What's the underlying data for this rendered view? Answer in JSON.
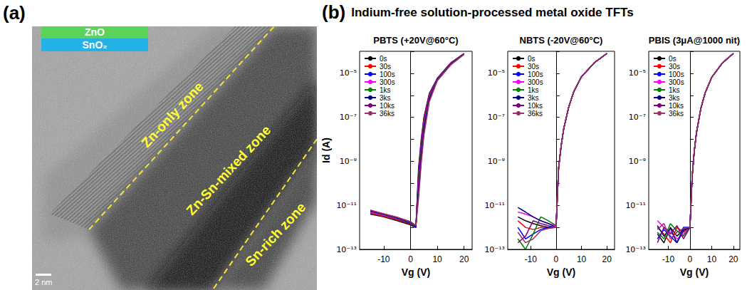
{
  "panel_a": {
    "label": "(a)",
    "inset": [
      "ZnO",
      "SnO₂"
    ],
    "zones": [
      "Zn-only zone",
      "Zn-Sn-mixed zone",
      "Sn-rich zone"
    ],
    "scale_bar": "2 nm"
  },
  "panel_b": {
    "label": "(b)",
    "title": "Indium-free solution-processed metal oxide TFTs"
  },
  "chart_data": [
    {
      "type": "line",
      "title": "PBTS (+20V@60°C)",
      "xlabel": "Vg (V)",
      "ylabel": "Id (A)",
      "log": "y",
      "grid": false,
      "legend": "upper left",
      "xlim": [
        -19,
        23
      ],
      "xticks": [
        -10,
        0,
        10,
        20
      ],
      "ylim": [
        1e-13,
        0.0001
      ],
      "yticks": [
        {
          "value": 1e-13,
          "label": "10⁻¹³"
        },
        {
          "value": 1e-11,
          "label": "10⁻¹¹"
        },
        {
          "value": 1e-09,
          "label": "10⁻⁹"
        },
        {
          "value": 1e-07,
          "label": "10⁻⁷"
        },
        {
          "value": 1e-05,
          "label": "10⁻⁵"
        }
      ],
      "x": [
        -15,
        -10,
        -5,
        0,
        1,
        2,
        3,
        4,
        5,
        7,
        10,
        15,
        20
      ],
      "series": [
        {
          "name": "0s",
          "color": "#000000",
          "values": [
            4e-12,
            3e-12,
            2e-12,
            1.3e-12,
            1.1e-12,
            1e-12,
            5e-10,
            1e-08,
            1e-07,
            1.2e-06,
            6e-06,
            3e-05,
            8e-05
          ]
        },
        {
          "name": "30s",
          "color": "#ff0000",
          "values": [
            4.5e-12,
            3.2e-12,
            2.2e-12,
            1.4e-12,
            1.2e-12,
            1e-12,
            3e-10,
            8e-09,
            8e-08,
            1.1e-06,
            5.8e-06,
            2.9e-05,
            7.9e-05
          ]
        },
        {
          "name": "100s",
          "color": "#0000ff",
          "values": [
            5e-12,
            3.5e-12,
            2.4e-12,
            1.5e-12,
            1.2e-12,
            1e-12,
            2e-10,
            6e-09,
            6e-08,
            1e-06,
            5.6e-06,
            2.8e-05,
            7.8e-05
          ]
        },
        {
          "name": "300s",
          "color": "#ff00ff",
          "values": [
            5e-12,
            3.6e-12,
            2.5e-12,
            1.6e-12,
            1.3e-12,
            1.1e-12,
            1.2e-10,
            4e-09,
            5e-08,
            9e-07,
            5.4e-06,
            2.8e-05,
            7.7e-05
          ]
        },
        {
          "name": "1ks",
          "color": "#008000",
          "values": [
            5.5e-12,
            3.8e-12,
            2.6e-12,
            1.6e-12,
            1.3e-12,
            1.1e-12,
            8e-11,
            3e-09,
            4e-08,
            8e-07,
            5.2e-06,
            2.7e-05,
            7.6e-05
          ]
        },
        {
          "name": "3ks",
          "color": "#000080",
          "values": [
            5.5e-12,
            4e-12,
            2.7e-12,
            1.7e-12,
            1.4e-12,
            1.1e-12,
            5e-11,
            2e-09,
            3e-08,
            7e-07,
            5e-06,
            2.6e-05,
            7.5e-05
          ]
        },
        {
          "name": "10ks",
          "color": "#800080",
          "values": [
            6e-12,
            4e-12,
            2.8e-12,
            1.8e-12,
            1.4e-12,
            1.2e-12,
            3e-11,
            1.2e-09,
            2e-08,
            6e-07,
            4.8e-06,
            2.5e-05,
            7.4e-05
          ]
        },
        {
          "name": "36ks",
          "color": "#993366",
          "values": [
            6e-12,
            4.2e-12,
            2.9e-12,
            1.8e-12,
            1.5e-12,
            1.2e-12,
            2e-11,
            8e-10,
            1.5e-08,
            5e-07,
            4.6e-06,
            2.4e-05,
            7.3e-05
          ]
        }
      ]
    },
    {
      "type": "line",
      "title": "NBTS (-20V@60°C)",
      "xlabel": "Vg (V)",
      "log": "y",
      "grid": false,
      "legend": "upper left",
      "xlim": [
        -19,
        23
      ],
      "xticks": [
        -10,
        0,
        10,
        20
      ],
      "ylim": [
        1e-13,
        0.0001
      ],
      "yticks": [
        {
          "value": 1e-13,
          "label": "10⁻¹³"
        },
        {
          "value": 1e-11,
          "label": "10⁻¹¹"
        },
        {
          "value": 1e-09,
          "label": "10⁻⁹"
        },
        {
          "value": 1e-07,
          "label": "10⁻⁷"
        },
        {
          "value": 1e-05,
          "label": "10⁻⁵"
        }
      ],
      "x": [
        -15,
        -12,
        -9,
        -6,
        -3,
        0,
        1,
        2,
        3,
        5,
        7,
        10,
        15,
        20
      ],
      "series": [
        {
          "name": "0s",
          "color": "#000000",
          "values": [
            3e-12,
            2e-12,
            1.5e-12,
            1.2e-12,
            1e-12,
            1e-12,
            5e-10,
            5e-09,
            3e-08,
            3e-07,
            1.5e-06,
            7e-06,
            3e-05,
            8e-05
          ]
        },
        {
          "name": "30s",
          "color": "#ff0000",
          "values": [
            2e-12,
            1e-12,
            8e-13,
            1e-12,
            9e-13,
            1e-12,
            5e-10,
            5e-09,
            3e-08,
            3e-07,
            1.5e-06,
            7e-06,
            3e-05,
            8e-05
          ]
        },
        {
          "name": "100s",
          "color": "#0000ff",
          "values": [
            1e-12,
            3e-13,
            5e-13,
            8e-13,
            1e-12,
            1e-12,
            5e-10,
            5e-09,
            3e-08,
            3e-07,
            1.5e-06,
            7e-06,
            3e-05,
            8e-05
          ]
        },
        {
          "name": "300s",
          "color": "#ff00ff",
          "values": [
            5e-12,
            4e-12,
            3e-12,
            2e-12,
            1.5e-12,
            1.2e-12,
            5e-10,
            5e-09,
            3e-08,
            3e-07,
            1.5e-06,
            7e-06,
            3e-05,
            8e-05
          ]
        },
        {
          "name": "1ks",
          "color": "#008000",
          "values": [
            3e-13,
            1e-13,
            5e-13,
            3e-12,
            2e-12,
            1.2e-12,
            5e-10,
            5e-09,
            3e-08,
            3e-07,
            1.5e-06,
            7e-06,
            3e-05,
            8e-05
          ]
        },
        {
          "name": "3ks",
          "color": "#000080",
          "values": [
            8e-12,
            5e-12,
            3e-12,
            2e-12,
            1.5e-12,
            1e-12,
            5e-10,
            5e-09,
            3e-08,
            3e-07,
            1.5e-06,
            7e-06,
            3e-05,
            8e-05
          ]
        },
        {
          "name": "10ks",
          "color": "#800080",
          "values": [
            2e-13,
            4e-13,
            2e-12,
            1.5e-12,
            1.2e-12,
            1e-12,
            5e-10,
            5e-09,
            3e-08,
            3e-07,
            1.5e-06,
            7e-06,
            3e-05,
            8e-05
          ]
        },
        {
          "name": "36ks",
          "color": "#993366",
          "values": [
            6e-13,
            2e-13,
            3e-13,
            7e-13,
            9e-13,
            1e-12,
            5e-10,
            5e-09,
            3e-08,
            3e-07,
            1.5e-06,
            7e-06,
            3e-05,
            8e-05
          ]
        }
      ]
    },
    {
      "type": "line",
      "title": "PBIS (3μA@1000 nit)",
      "xlabel": "Vg (V)",
      "log": "y",
      "grid": false,
      "legend": "upper left",
      "xlim": [
        -19,
        23
      ],
      "xticks": [
        -10,
        0,
        10,
        20
      ],
      "ylim": [
        1e-13,
        0.0001
      ],
      "yticks": [
        {
          "value": 1e-13,
          "label": "10⁻¹³"
        },
        {
          "value": 1e-11,
          "label": "10⁻¹¹"
        },
        {
          "value": 1e-09,
          "label": "10⁻⁹"
        },
        {
          "value": 1e-07,
          "label": "10⁻⁷"
        },
        {
          "value": 1e-05,
          "label": "10⁻⁵"
        }
      ],
      "x": [
        -15,
        -12,
        -9,
        -6,
        -3,
        0,
        1,
        2,
        3,
        5,
        7,
        10,
        15,
        20
      ],
      "series": [
        {
          "name": "0s",
          "color": "#000000",
          "values": [
            5e-13,
            2e-13,
            1e-12,
            4e-13,
            8e-13,
            1e-12,
            2e-10,
            3e-09,
            2e-08,
            2.5e-07,
            1.3e-06,
            6.5e-06,
            3e-05,
            8e-05
          ]
        },
        {
          "name": "30s",
          "color": "#ff0000",
          "values": [
            1e-12,
            5e-13,
            2e-13,
            1e-12,
            6e-13,
            1e-12,
            2e-10,
            3e-09,
            2e-08,
            2.5e-07,
            1.3e-06,
            6.5e-06,
            3e-05,
            8e-05
          ]
        },
        {
          "name": "100s",
          "color": "#0000ff",
          "values": [
            3e-13,
            8e-13,
            4e-13,
            2e-13,
            1e-12,
            1e-12,
            2e-10,
            3e-09,
            2e-08,
            2.5e-07,
            1.3e-06,
            6.5e-06,
            3e-05,
            8e-05
          ]
        },
        {
          "name": "300s",
          "color": "#ff00ff",
          "values": [
            2e-12,
            1e-12,
            6e-13,
            3e-13,
            5e-13,
            1e-12,
            2e-10,
            3e-09,
            2e-08,
            2.5e-07,
            1.3e-06,
            6.5e-06,
            3e-05,
            8e-05
          ]
        },
        {
          "name": "1ks",
          "color": "#008000",
          "values": [
            6e-13,
            3e-13,
            1.5e-12,
            7e-13,
            4e-13,
            1e-12,
            2e-10,
            3e-09,
            2e-08,
            2.5e-07,
            1.3e-06,
            6.5e-06,
            3e-05,
            8e-05
          ]
        },
        {
          "name": "3ks",
          "color": "#000080",
          "values": [
            1.2e-12,
            4e-13,
            9e-13,
            2e-13,
            7e-13,
            1e-12,
            2e-10,
            3e-09,
            2e-08,
            2.5e-07,
            1.3e-06,
            6.5e-06,
            3e-05,
            8e-05
          ]
        },
        {
          "name": "10ks",
          "color": "#800080",
          "values": [
            2e-13,
            1e-12,
            5e-13,
            1.2e-12,
            3e-13,
            1e-12,
            2e-10,
            3e-09,
            2e-08,
            2.5e-07,
            1.3e-06,
            6.5e-06,
            3e-05,
            8e-05
          ]
        },
        {
          "name": "36ks",
          "color": "#993366",
          "values": [
            8e-13,
            1.5e-12,
            3e-13,
            6e-13,
            9e-13,
            1e-12,
            2e-10,
            3e-09,
            2e-08,
            2.5e-07,
            1.3e-06,
            6.5e-06,
            3e-05,
            8e-05
          ]
        }
      ]
    }
  ]
}
